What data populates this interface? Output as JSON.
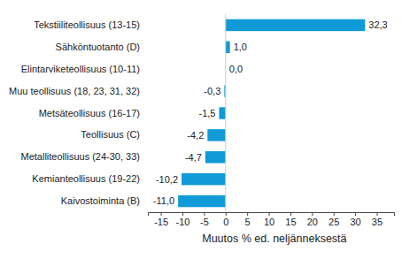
{
  "chart_data": {
    "type": "bar",
    "orientation": "horizontal",
    "x_label": "Muutos % ed. neljänneksestä",
    "categories": [
      "Tekstiiliteollisuus (13-15)",
      "Sähköntuotanto (D)",
      "Elintarviketeollisuus (10-11)",
      "Muu teollisuus (18, 23, 31, 32)",
      "Metsäteollisuus (16-17)",
      "Teollisuus (C)",
      "Metalliteollisuus (24-30, 33)",
      "Kemianteollisuus (19-22)",
      "Kaivostoiminta (B)"
    ],
    "values": [
      32.3,
      1.0,
      0.0,
      -0.3,
      -1.5,
      -4.2,
      -4.7,
      -10.2,
      -11.0
    ],
    "value_labels": [
      "32,3",
      "1,0",
      "0,0",
      "-0,3",
      "-1,5",
      "-4,2",
      "-4,7",
      "-10,2",
      "-11,0"
    ],
    "data_labels": true,
    "color": "#109ad7",
    "xlim": [
      -18,
      39
    ],
    "xticks": [
      -15,
      -10,
      -5,
      0,
      5,
      10,
      15,
      20,
      25,
      30,
      35
    ],
    "grid": false
  }
}
